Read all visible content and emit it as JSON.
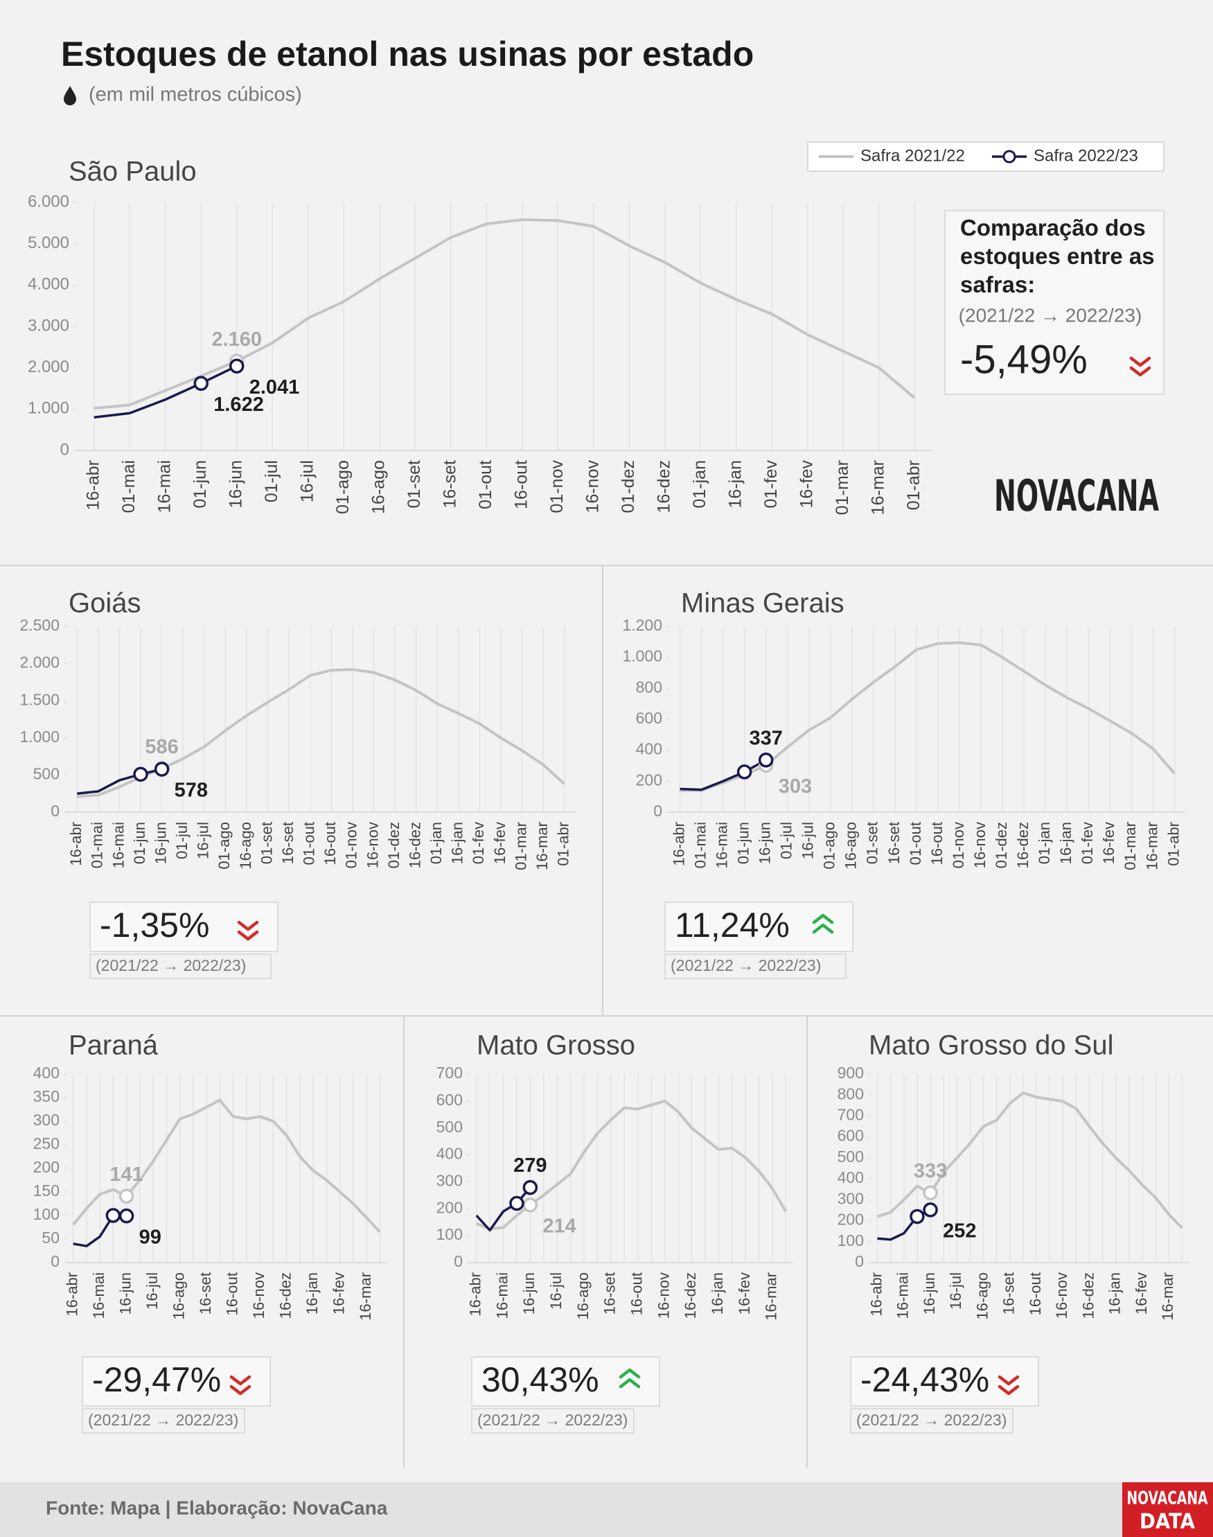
{
  "title": "Estoques de etanol nas usinas por estado",
  "subtitle": "(em mil metros cúbicos)",
  "logo": "NOVACANA",
  "source": "Fonte: Mapa | Elaboração: NovaCana",
  "footer_logo": [
    "NOVACANA",
    "DATA"
  ],
  "chart_data": [
    {
      "type": "line",
      "title": "São Paulo",
      "categories": [
        "16-abr",
        "01-mai",
        "16-mai",
        "01-jun",
        "16-jun",
        "01-jul",
        "16-jul",
        "01-ago",
        "16-ago",
        "01-set",
        "16-set",
        "01-out",
        "16-out",
        "01-nov",
        "16-nov",
        "01-dez",
        "16-dez",
        "01-jan",
        "16-jan",
        "01-fev",
        "16-fev",
        "01-mar",
        "16-mar",
        "01-abr"
      ],
      "series": [
        {
          "name": "Safra 2021/22",
          "color": "#c4c4c4",
          "values": [
            1020,
            1100,
            1450,
            1800,
            2160,
            2600,
            3200,
            3600,
            4150,
            4650,
            5150,
            5480,
            5580,
            5560,
            5420,
            4950,
            4550,
            4050,
            3650,
            3300,
            2800,
            2400,
            2000,
            1270
          ],
          "value_labels": [
            null,
            null,
            null,
            null,
            "2.160",
            null,
            null,
            null,
            null,
            null,
            null,
            null,
            null,
            null,
            null,
            null,
            null,
            null,
            null,
            null,
            null,
            null,
            null,
            null
          ]
        },
        {
          "name": "Safra 2022/23",
          "color": "#1b1a4d",
          "values": [
            800,
            900,
            1230,
            1622,
            2041,
            null,
            null,
            null,
            null,
            null,
            null,
            null,
            null,
            null,
            null,
            null,
            null,
            null,
            null,
            null,
            null,
            null,
            null,
            null
          ],
          "value_labels": [
            null,
            null,
            null,
            "1.622",
            "2.041",
            null,
            null,
            null,
            null,
            null,
            null,
            null,
            null,
            null,
            null,
            null,
            null,
            null,
            null,
            null,
            null,
            null,
            null,
            null
          ]
        }
      ],
      "ylim": [
        0,
        6000
      ],
      "yticks": [
        0,
        {
          "value": 1000,
          "label": "1.000"
        },
        {
          "value": 2000,
          "label": "2.000"
        },
        {
          "value": 3000,
          "label": "3.000"
        },
        {
          "value": 4000,
          "label": "4.000"
        },
        {
          "value": 5000,
          "label": "5.000"
        },
        {
          "value": 6000,
          "label": "6.000"
        }
      ],
      "grid": true,
      "legend": "top-right",
      "comparison_title": "Comparação dos estoques entre as safras:",
      "period": "(2021/22 → 2022/23)",
      "change": -5.49,
      "change_label": "-5,49%"
    },
    {
      "type": "line",
      "title": "Goiás",
      "categories": [
        "16-abr",
        "01-mai",
        "16-mai",
        "01-jun",
        "16-jun",
        "01-jul",
        "16-jul",
        "01-ago",
        "16-ago",
        "01-set",
        "16-set",
        "01-out",
        "16-out",
        "01-nov",
        "16-nov",
        "01-dez",
        "16-dez",
        "01-jan",
        "16-jan",
        "01-fev",
        "16-fev",
        "01-mar",
        "16-mar",
        "01-abr"
      ],
      "series": [
        {
          "name": "Safra 2021/22",
          "color": "#c4c4c4",
          "values": [
            210,
            230,
            340,
            470,
            586,
            720,
            880,
            1100,
            1300,
            1480,
            1650,
            1840,
            1910,
            1920,
            1880,
            1780,
            1640,
            1460,
            1330,
            1190,
            1000,
            830,
            640,
            380
          ],
          "value_labels": [
            null,
            null,
            null,
            null,
            "586",
            null,
            null,
            null,
            null,
            null,
            null,
            null,
            null,
            null,
            null,
            null,
            null,
            null,
            null,
            null,
            null,
            null,
            null,
            null
          ]
        },
        {
          "name": "Safra 2022/23",
          "color": "#1b1a4d",
          "values": [
            250,
            280,
            430,
            510,
            578,
            null,
            null,
            null,
            null,
            null,
            null,
            null,
            null,
            null,
            null,
            null,
            null,
            null,
            null,
            null,
            null,
            null,
            null,
            null
          ],
          "value_labels": [
            null,
            null,
            null,
            null,
            "578",
            null,
            null,
            null,
            null,
            null,
            null,
            null,
            null,
            null,
            null,
            null,
            null,
            null,
            null,
            null,
            null,
            null,
            null,
            null
          ]
        }
      ],
      "ylim": [
        0,
        2500
      ],
      "yticks": [
        0,
        500,
        {
          "value": 1000,
          "label": "1.000"
        },
        {
          "value": 1500,
          "label": "1.500"
        },
        {
          "value": 2000,
          "label": "2.000"
        },
        {
          "value": 2500,
          "label": "2.500"
        }
      ],
      "grid": true,
      "period": "(2021/22 → 2022/23)",
      "change": -1.35,
      "change_label": "-1,35%"
    },
    {
      "type": "line",
      "title": "Minas Gerais",
      "categories": [
        "16-abr",
        "01-mai",
        "16-mai",
        "01-jun",
        "16-jun",
        "01-jul",
        "16-jul",
        "01-ago",
        "16-ago",
        "01-set",
        "16-set",
        "01-out",
        "16-out",
        "01-nov",
        "16-nov",
        "01-dez",
        "16-dez",
        "01-jan",
        "16-jan",
        "01-fev",
        "16-fev",
        "01-mar",
        "16-mar",
        "01-abr"
      ],
      "series": [
        {
          "name": "Safra 2021/22",
          "color": "#c4c4c4",
          "values": [
            140,
            140,
            190,
            240,
            303,
            420,
            530,
            610,
            730,
            840,
            940,
            1050,
            1090,
            1095,
            1080,
            1000,
            910,
            820,
            740,
            670,
            590,
            510,
            410,
            250
          ],
          "value_labels": [
            null,
            null,
            null,
            null,
            "303",
            null,
            null,
            null,
            null,
            null,
            null,
            null,
            null,
            null,
            null,
            null,
            null,
            null,
            null,
            null,
            null,
            null,
            null,
            null
          ]
        },
        {
          "name": "Safra 2022/23",
          "color": "#1b1a4d",
          "values": [
            150,
            145,
            200,
            260,
            337,
            null,
            null,
            null,
            null,
            null,
            null,
            null,
            null,
            null,
            null,
            null,
            null,
            null,
            null,
            null,
            null,
            null,
            null,
            null
          ],
          "value_labels": [
            null,
            null,
            null,
            null,
            "337",
            null,
            null,
            null,
            null,
            null,
            null,
            null,
            null,
            null,
            null,
            null,
            null,
            null,
            null,
            null,
            null,
            null,
            null,
            null
          ]
        }
      ],
      "ylim": [
        0,
        1200
      ],
      "yticks": [
        0,
        200,
        400,
        600,
        800,
        {
          "value": 1000,
          "label": "1.000"
        },
        {
          "value": 1200,
          "label": "1.200"
        }
      ],
      "grid": true,
      "period": "(2021/22 → 2022/23)",
      "change": 11.24,
      "change_label": "11,24%"
    },
    {
      "type": "line",
      "title": "Paraná",
      "categories": [
        "16-abr",
        null,
        "16-mai",
        null,
        "16-jun",
        null,
        "16-jul",
        null,
        "16-ago",
        null,
        "16-set",
        null,
        "16-out",
        null,
        "16-nov",
        null,
        "16-dez",
        null,
        "16-jan",
        null,
        "16-fev",
        null,
        "16-mar",
        null
      ],
      "series": [
        {
          "name": "Safra 2021/22",
          "color": "#c4c4c4",
          "values": [
            80,
            115,
            145,
            155,
            141,
            175,
            215,
            260,
            305,
            315,
            330,
            345,
            310,
            305,
            310,
            300,
            270,
            225,
            195,
            175,
            150,
            125,
            95,
            65
          ],
          "value_labels": [
            null,
            null,
            null,
            null,
            "141",
            null,
            null,
            null,
            null,
            null,
            null,
            null,
            null,
            null,
            null,
            null,
            null,
            null,
            null,
            null,
            null,
            null,
            null,
            null
          ]
        },
        {
          "name": "Safra 2022/23",
          "color": "#1b1a4d",
          "values": [
            40,
            35,
            55,
            100,
            99,
            null,
            null,
            null,
            null,
            null,
            null,
            null,
            null,
            null,
            null,
            null,
            null,
            null,
            null,
            null,
            null,
            null,
            null,
            null
          ],
          "value_labels": [
            null,
            null,
            null,
            null,
            "99",
            null,
            null,
            null,
            null,
            null,
            null,
            null,
            null,
            null,
            null,
            null,
            null,
            null,
            null,
            null,
            null,
            null,
            null,
            null
          ]
        }
      ],
      "ylim": [
        0,
        400
      ],
      "yticks": [
        0,
        50,
        100,
        150,
        200,
        250,
        300,
        350,
        400
      ],
      "grid": true,
      "period": "(2021/22 → 2022/23)",
      "change": -29.47,
      "change_label": "-29,47%"
    },
    {
      "type": "line",
      "title": "Mato Grosso",
      "categories": [
        "16-abr",
        null,
        "16-mai",
        null,
        "16-jun",
        null,
        "16-jul",
        null,
        "16-ago",
        null,
        "16-set",
        null,
        "16-out",
        null,
        "16-nov",
        null,
        "16-dez",
        null,
        "16-jan",
        null,
        "16-fev",
        null,
        "16-mar",
        null
      ],
      "series": [
        {
          "name": "Safra 2021/22",
          "color": "#c4c4c4",
          "values": [
            145,
            125,
            130,
            175,
            214,
            250,
            290,
            330,
            410,
            480,
            530,
            575,
            570,
            585,
            600,
            560,
            500,
            460,
            420,
            425,
            390,
            340,
            275,
            190
          ],
          "value_labels": [
            null,
            null,
            null,
            null,
            "214",
            null,
            null,
            null,
            null,
            null,
            null,
            null,
            null,
            null,
            null,
            null,
            null,
            null,
            null,
            null,
            null,
            null,
            null,
            null
          ]
        },
        {
          "name": "Safra 2022/23",
          "color": "#1b1a4d",
          "values": [
            175,
            120,
            190,
            220,
            279,
            null,
            null,
            null,
            null,
            null,
            null,
            null,
            null,
            null,
            null,
            null,
            null,
            null,
            null,
            null,
            null,
            null,
            null,
            null
          ],
          "value_labels": [
            null,
            null,
            null,
            null,
            "279",
            null,
            null,
            null,
            null,
            null,
            null,
            null,
            null,
            null,
            null,
            null,
            null,
            null,
            null,
            null,
            null,
            null,
            null,
            null
          ]
        }
      ],
      "ylim": [
        0,
        700
      ],
      "yticks": [
        0,
        100,
        200,
        300,
        400,
        500,
        600,
        700
      ],
      "grid": true,
      "period": "(2021/22 → 2022/23)",
      "change": 30.43,
      "change_label": "30,43%"
    },
    {
      "type": "line",
      "title": "Mato Grosso do Sul",
      "categories": [
        "16-abr",
        null,
        "16-mai",
        null,
        "16-jun",
        null,
        "16-jul",
        null,
        "16-ago",
        null,
        "16-set",
        null,
        "16-out",
        null,
        "16-nov",
        null,
        "16-dez",
        null,
        "16-jan",
        null,
        "16-fev",
        null,
        "16-mar",
        null
      ],
      "series": [
        {
          "name": "Safra 2021/22",
          "color": "#c4c4c4",
          "values": [
            220,
            240,
            300,
            365,
            333,
            430,
            500,
            570,
            650,
            680,
            760,
            810,
            790,
            780,
            770,
            735,
            650,
            570,
            500,
            440,
            370,
            310,
            230,
            165
          ],
          "value_labels": [
            null,
            null,
            null,
            null,
            "333",
            null,
            null,
            null,
            null,
            null,
            null,
            null,
            null,
            null,
            null,
            null,
            null,
            null,
            null,
            null,
            null,
            null,
            null,
            null
          ]
        },
        {
          "name": "Safra 2022/23",
          "color": "#1b1a4d",
          "values": [
            115,
            110,
            140,
            220,
            252,
            null,
            null,
            null,
            null,
            null,
            null,
            null,
            null,
            null,
            null,
            null,
            null,
            null,
            null,
            null,
            null,
            null,
            null,
            null
          ],
          "value_labels": [
            null,
            null,
            null,
            null,
            "252",
            null,
            null,
            null,
            null,
            null,
            null,
            null,
            null,
            null,
            null,
            null,
            null,
            null,
            null,
            null,
            null,
            null,
            null,
            null
          ]
        }
      ],
      "ylim": [
        0,
        900
      ],
      "yticks": [
        0,
        100,
        200,
        300,
        400,
        500,
        600,
        700,
        800,
        900
      ],
      "grid": true,
      "period": "(2021/22 → 2022/23)",
      "change": -24.43,
      "change_label": "-24,43%"
    }
  ]
}
